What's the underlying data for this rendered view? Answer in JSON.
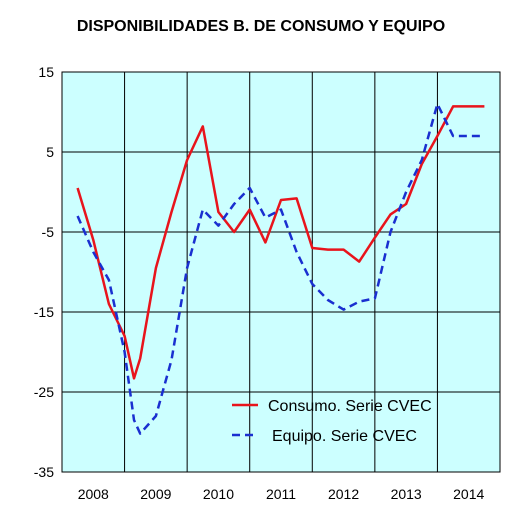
{
  "chart_data": {
    "type": "line",
    "title": "DISPONIBILIDADES B. DE CONSUMO Y EQUIPO",
    "xlabel": "",
    "ylabel": "",
    "ylim": [
      -35,
      15
    ],
    "yticks": [
      15,
      5,
      -5,
      -15,
      -25,
      -35
    ],
    "categories": [
      "2008",
      "2009",
      "2010",
      "2011",
      "2012",
      "2013",
      "2014"
    ],
    "grid": true,
    "legend_position": "bottom-right",
    "series": [
      {
        "name": "Consumo. Serie CVEC",
        "color": "#e8141c",
        "style": "solid",
        "x": [
          2008.0,
          2008.25,
          2008.5,
          2008.75,
          2008.9,
          2009.0,
          2009.25,
          2009.5,
          2009.75,
          2010.0,
          2010.25,
          2010.5,
          2010.75,
          2011.0,
          2011.25,
          2011.5,
          2011.75,
          2012.0,
          2012.25,
          2012.5,
          2012.75,
          2013.0,
          2013.25,
          2013.5,
          2013.75,
          2014.0,
          2014.25,
          2014.5
        ],
        "values": [
          0.5,
          -6.0,
          -14.0,
          -18.0,
          -23.3,
          -20.8,
          -9.5,
          -2.5,
          4.0,
          8.2,
          -2.5,
          -5.0,
          -2.2,
          -6.3,
          -1.0,
          -0.8,
          -7.0,
          -7.2,
          -7.2,
          -8.7,
          -5.7,
          -2.8,
          -1.5,
          3.5,
          7.0,
          10.7,
          10.7,
          10.7
        ]
      },
      {
        "name": "Equipo. Serie CVEC",
        "color": "#1a2fd0",
        "style": "dashed",
        "x": [
          2008.0,
          2008.25,
          2008.5,
          2008.75,
          2008.9,
          2009.0,
          2009.25,
          2009.5,
          2009.75,
          2010.0,
          2010.25,
          2010.5,
          2010.75,
          2011.0,
          2011.25,
          2011.5,
          2011.75,
          2012.0,
          2012.25,
          2012.5,
          2012.75,
          2013.0,
          2013.25,
          2013.5,
          2013.75,
          2014.0,
          2014.25,
          2014.5
        ],
        "values": [
          -3.0,
          -7.5,
          -11.0,
          -20.0,
          -28.5,
          -30.2,
          -28.0,
          -21.0,
          -9.5,
          -2.2,
          -4.2,
          -1.5,
          0.5,
          -3.2,
          -2.2,
          -7.5,
          -11.5,
          -13.5,
          -14.7,
          -13.7,
          -13.3,
          -5.0,
          0.0,
          4.0,
          11.0,
          7.0,
          7.0,
          7.0
        ]
      }
    ]
  }
}
